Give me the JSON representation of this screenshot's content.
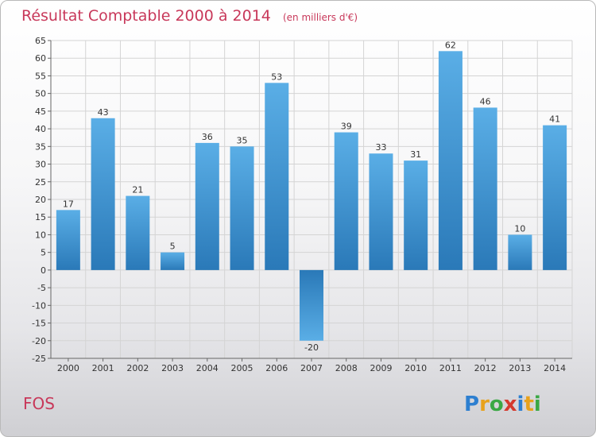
{
  "chart_data": {
    "type": "bar",
    "title": "Résultat Comptable 2000 à 2014",
    "subtitle": "(en milliers d'€)",
    "categories": [
      "2000",
      "2001",
      "2002",
      "2003",
      "2004",
      "2005",
      "2006",
      "2007",
      "2008",
      "2009",
      "2010",
      "2011",
      "2012",
      "2013",
      "2014"
    ],
    "values": [
      17,
      43,
      21,
      5,
      36,
      35,
      53,
      -20,
      39,
      33,
      31,
      62,
      46,
      10,
      41
    ],
    "ylim": [
      -25,
      65
    ],
    "ytick_step": 5,
    "grid": true,
    "bar_color_light": "#5aaee6",
    "bar_color_dark": "#2a79b8",
    "accent_color": "#c8385a"
  },
  "footer": {
    "place_name": "FOS",
    "logo_text": "Proxiti",
    "logo_letters": [
      {
        "ch": "P",
        "color": "#2d7fd0"
      },
      {
        "ch": "r",
        "color": "#e8a21c"
      },
      {
        "ch": "o",
        "color": "#3aa844"
      },
      {
        "ch": "x",
        "color": "#d43a2e"
      },
      {
        "ch": "i",
        "color": "#2d7fd0"
      },
      {
        "ch": "t",
        "color": "#e8a21c"
      },
      {
        "ch": "i",
        "color": "#3aa844"
      }
    ]
  }
}
